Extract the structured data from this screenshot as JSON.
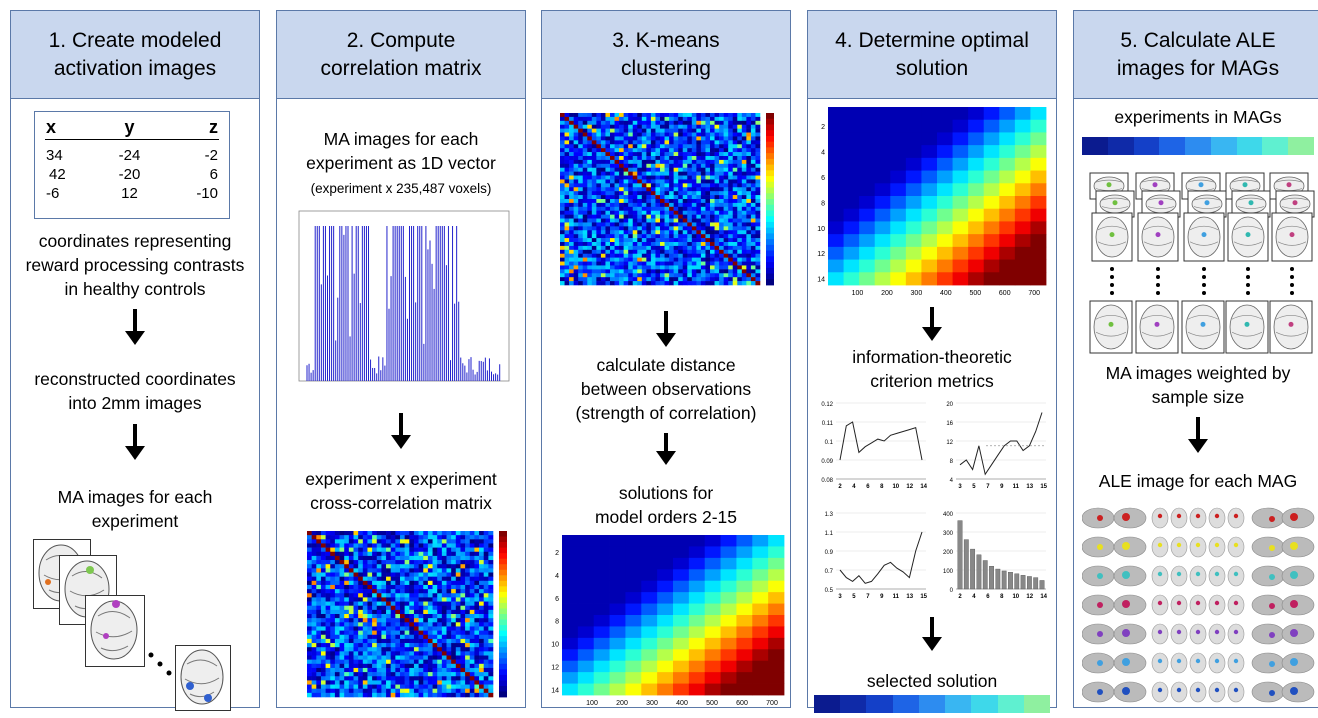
{
  "columns": [
    {
      "title": "1. Create modeled\nactivation images"
    },
    {
      "title": "2. Compute\ncorrelation matrix"
    },
    {
      "title": "3. K-means\nclustering"
    },
    {
      "title": "4. Determine optimal\nsolution"
    },
    {
      "title": "5. Calculate ALE\nimages for MAGs"
    }
  ],
  "col1": {
    "table_headers": [
      "x",
      "y",
      "z"
    ],
    "table_rows": [
      [
        "34",
        "-24",
        "-2"
      ],
      [
        "42",
        "-20",
        "6"
      ],
      [
        "-6",
        "12",
        "-10"
      ]
    ],
    "text1": "coordinates representing\nreward processing contrasts\nin  healthy controls",
    "text2": "reconstructed coordinates\ninto 2mm images",
    "text3": "MA images for each\nexperiment"
  },
  "col2": {
    "text1": "MA images for each\nexperiment as 1D vector",
    "text1_sub": "(experiment x 235,487 voxels)",
    "text2": "experiment x experiment\ncross-correlation matrix"
  },
  "col3": {
    "text1": "calculate distance\nbetween observations\n(strength of correlation)",
    "text2": "solutions for\nmodel orders 2-15"
  },
  "col4": {
    "text1": "information-theoretic\ncriterion metrics",
    "text2": "selected solution"
  },
  "col5": {
    "text1": "experiments in MAGs",
    "text2": "MA images weighted by\nsample size",
    "text3": "ALE image for each MAG"
  },
  "heatmap_rows": [
    "2",
    "4",
    "6",
    "8",
    "10",
    "12",
    "14"
  ],
  "heatmap_cols": [
    "100",
    "200",
    "300",
    "400",
    "500",
    "600",
    "700"
  ],
  "chart_data": [
    {
      "type": "line",
      "ylim": [
        0.08,
        0.12
      ],
      "yticks": [
        "0.12",
        "0.11",
        "0.1",
        "0.09",
        "0.08"
      ],
      "xticks": [
        "2",
        "4",
        "6",
        "8",
        "10",
        "12",
        "14"
      ],
      "x": [
        2,
        3,
        4,
        5,
        6,
        7,
        8,
        9,
        10,
        11,
        12,
        13,
        14,
        15
      ],
      "values": [
        0.09,
        0.108,
        0.11,
        0.094,
        0.097,
        0.099,
        0.101,
        0.1,
        0.103,
        0.104,
        0.105,
        0.106,
        0.107,
        0.09
      ]
    },
    {
      "type": "line",
      "ylim": [
        4,
        20
      ],
      "yticks": [
        "20",
        "16",
        "12",
        "8",
        "4"
      ],
      "xticks": [
        "3",
        "5",
        "7",
        "9",
        "11",
        "13",
        "15"
      ],
      "x": [
        2,
        3,
        4,
        5,
        6,
        7,
        8,
        9,
        10,
        11,
        12,
        13,
        14,
        15
      ],
      "values": [
        7,
        8,
        6,
        11,
        5,
        7,
        9,
        11,
        12,
        12,
        10,
        11,
        14,
        18
      ]
    },
    {
      "type": "line",
      "ylim": [
        0.5,
        1.3
      ],
      "yticks": [
        "1.3",
        "1.1",
        "0.9",
        "0.7",
        "0.5"
      ],
      "xticks": [
        "3",
        "5",
        "7",
        "9",
        "11",
        "13",
        "15"
      ],
      "x": [
        2,
        3,
        4,
        5,
        6,
        7,
        8,
        9,
        10,
        11,
        12,
        13,
        14,
        15
      ],
      "values": [
        0.7,
        0.62,
        0.58,
        0.64,
        0.56,
        0.58,
        0.66,
        0.75,
        0.78,
        0.72,
        0.68,
        0.62,
        0.9,
        1.1
      ]
    },
    {
      "type": "bar",
      "ylim": [
        0,
        400
      ],
      "yticks": [
        "400",
        "300",
        "200",
        "100",
        "0"
      ],
      "xticks": [
        "2",
        "4",
        "6",
        "8",
        "10",
        "12",
        "14"
      ],
      "x": [
        2,
        3,
        4,
        5,
        6,
        7,
        8,
        9,
        10,
        11,
        12,
        13,
        14,
        15
      ],
      "values": [
        360,
        260,
        210,
        180,
        150,
        120,
        105,
        95,
        88,
        80,
        72,
        66,
        60,
        45
      ]
    }
  ],
  "colors": {
    "header_bg": "#c9d7ee",
    "border": "#5b79a8",
    "jet": [
      "#00008f",
      "#0000ff",
      "#007fff",
      "#00ffff",
      "#7fff7f",
      "#ffff00",
      "#ff7f00",
      "#ff0000",
      "#7f0000"
    ],
    "groups": [
      "#0b1b8f",
      "#0f2aa8",
      "#1440c8",
      "#1e64e6",
      "#2d8cf0",
      "#39b6f2",
      "#3ed8ea",
      "#5ff0d0",
      "#8ff0a0"
    ]
  }
}
